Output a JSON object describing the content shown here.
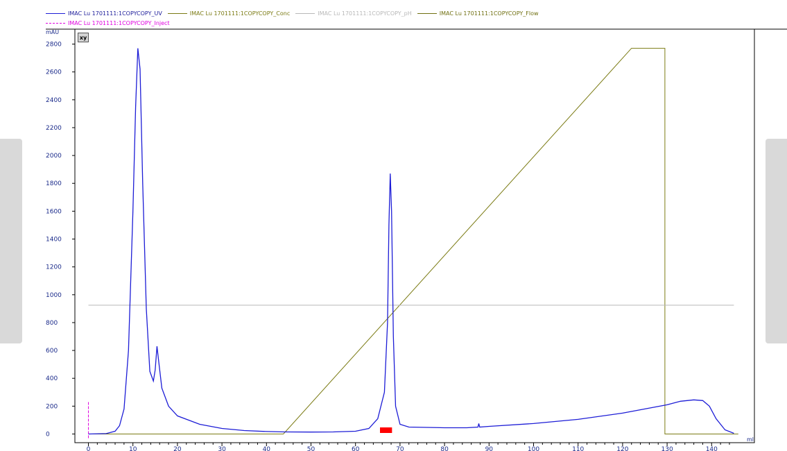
{
  "legend": {
    "row1": [
      {
        "label": "IMAC Lu 1701111:1COPYCOPY_UV",
        "color": "#1c1cd6",
        "text_color": "#1c1c9a",
        "dashed": false
      },
      {
        "label": "IMAC Lu 1701111:1COPYCOPY_Conc",
        "color": "#7a7a12",
        "text_color": "#7a7a12",
        "dashed": false
      },
      {
        "label": "IMAC Lu 1701111:1COPYCOPY_pH",
        "color": "#b8b8b8",
        "text_color": "#b8b8b8",
        "dashed": false
      },
      {
        "label": "IMAC Lu 1701111:1COPYCOPY_Flow",
        "color": "#6f6f10",
        "text_color": "#6f6f10",
        "dashed": false
      }
    ],
    "row2": [
      {
        "label": "IMAC Lu 1701111:1COPYCOPY_Inject",
        "color": "#e000e0",
        "text_color": "#e000e0",
        "dashed": true
      }
    ]
  },
  "toolbar": {
    "xy_label": "xy"
  },
  "chart_data": {
    "type": "line",
    "ylabel": "mAU",
    "xlabel": "ml",
    "xlim": [
      0,
      146
    ],
    "ylim": [
      -30,
      2830
    ],
    "x_ticks": [
      0,
      10,
      20,
      30,
      40,
      50,
      60,
      70,
      80,
      90,
      100,
      110,
      120,
      130,
      140
    ],
    "y_ticks": [
      0,
      200,
      400,
      600,
      800,
      1000,
      1200,
      1400,
      1600,
      1800,
      2000,
      2200,
      2400,
      2600,
      2800
    ],
    "grid": false,
    "legend_position": "top",
    "series": [
      {
        "name": "IMAC Lu 1701111:1COPYCOPY_UV",
        "color": "#1c1cd6",
        "points": [
          [
            0,
            0
          ],
          [
            4,
            3
          ],
          [
            6,
            20
          ],
          [
            7,
            60
          ],
          [
            8,
            180
          ],
          [
            9,
            600
          ],
          [
            10,
            1600
          ],
          [
            10.6,
            2350
          ],
          [
            11.1,
            2770
          ],
          [
            11.6,
            2620
          ],
          [
            12.2,
            1800
          ],
          [
            13,
            900
          ],
          [
            13.8,
            450
          ],
          [
            14.6,
            380
          ],
          [
            15,
            460
          ],
          [
            15.4,
            630
          ],
          [
            15.8,
            520
          ],
          [
            16.5,
            330
          ],
          [
            18,
            200
          ],
          [
            20,
            130
          ],
          [
            25,
            70
          ],
          [
            30,
            40
          ],
          [
            35,
            25
          ],
          [
            40,
            18
          ],
          [
            44,
            15
          ],
          [
            50,
            14
          ],
          [
            55,
            15
          ],
          [
            60,
            20
          ],
          [
            63,
            40
          ],
          [
            65,
            110
          ],
          [
            66.5,
            300
          ],
          [
            67.2,
            800
          ],
          [
            67.5,
            1500
          ],
          [
            67.8,
            1870
          ],
          [
            68.1,
            1600
          ],
          [
            68.5,
            700
          ],
          [
            69,
            200
          ],
          [
            70,
            70
          ],
          [
            72,
            50
          ],
          [
            80,
            45
          ],
          [
            85,
            45
          ],
          [
            87.5,
            50
          ],
          [
            87.7,
            75
          ],
          [
            87.9,
            50
          ],
          [
            90,
            55
          ],
          [
            100,
            75
          ],
          [
            110,
            105
          ],
          [
            120,
            150
          ],
          [
            125,
            180
          ],
          [
            130,
            210
          ],
          [
            133,
            235
          ],
          [
            136,
            245
          ],
          [
            138,
            240
          ],
          [
            139.5,
            200
          ],
          [
            141,
            110
          ],
          [
            143,
            30
          ],
          [
            145,
            5
          ]
        ]
      },
      {
        "name": "IMAC Lu 1701111:1COPYCOPY_Conc",
        "color": "#7a7a12",
        "points": [
          [
            0,
            0
          ],
          [
            43.8,
            0
          ],
          [
            122,
            2770
          ],
          [
            129.5,
            2770
          ],
          [
            129.5,
            0
          ],
          [
            146,
            0
          ]
        ]
      },
      {
        "name": "IMAC Lu 1701111:1COPYCOPY_pH",
        "color": "#b8b8b8",
        "points": [
          [
            0,
            925
          ],
          [
            145,
            925
          ]
        ]
      },
      {
        "name": "IMAC Lu 1701111:1COPYCOPY_Inject",
        "color": "#e000e0",
        "points": [
          [
            0,
            -30
          ],
          [
            0,
            230
          ]
        ]
      }
    ],
    "fraction_marks": [
      {
        "x_start": 65.5,
        "x_end": 68.2,
        "color": "#ff0000"
      }
    ]
  }
}
